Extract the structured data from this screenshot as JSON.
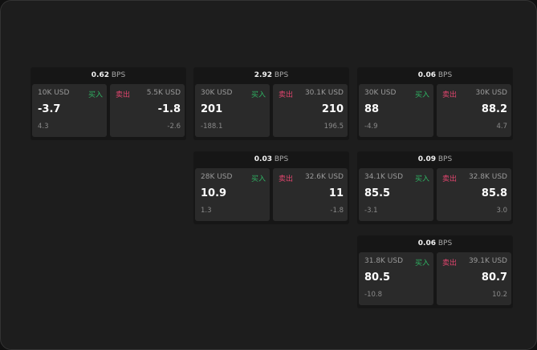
{
  "unit": "BPS",
  "buy_label": "买入",
  "sell_label": "卖出",
  "cards": [
    {
      "bps": "0.62",
      "bid_size": "10K USD",
      "bid": "-3.7",
      "bid_sub": "4.3",
      "ask_size": "5.5K USD",
      "ask": "-1.8",
      "ask_sub": "-2.6"
    },
    {
      "bps": "2.92",
      "bid_size": "30K USD",
      "bid": "201",
      "bid_sub": "-188.1",
      "ask_size": "30.1K USD",
      "ask": "210",
      "ask_sub": "196.5"
    },
    {
      "bps": "0.06",
      "bid_size": "30K USD",
      "bid": "88",
      "bid_sub": "-4.9",
      "ask_size": "30K USD",
      "ask": "88.2",
      "ask_sub": "4.7"
    },
    {
      "bps": "0.03",
      "bid_size": "28K USD",
      "bid": "10.9",
      "bid_sub": "1.3",
      "ask_size": "32.6K USD",
      "ask": "11",
      "ask_sub": "-1.8"
    },
    {
      "bps": "0.09",
      "bid_size": "34.1K USD",
      "bid": "85.5",
      "bid_sub": "-3.1",
      "ask_size": "32.8K USD",
      "ask": "85.8",
      "ask_sub": "3.0"
    },
    {
      "bps": "0.06",
      "bid_size": "31.8K USD",
      "bid": "80.5",
      "bid_sub": "-10.8",
      "ask_size": "39.1K USD",
      "ask": "80.7",
      "ask_sub": "10.2"
    }
  ]
}
